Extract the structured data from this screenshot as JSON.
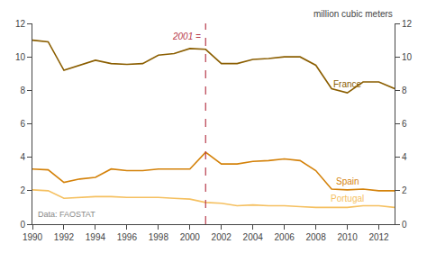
{
  "chart_data": {
    "type": "line",
    "x": [
      1990,
      1991,
      1992,
      1993,
      1994,
      1995,
      1996,
      1997,
      1998,
      1999,
      2000,
      2001,
      2002,
      2003,
      2004,
      2005,
      2006,
      2007,
      2008,
      2009,
      2010,
      2011,
      2012,
      2013
    ],
    "series": [
      {
        "name": "France",
        "color": "#8B5E00",
        "values": [
          11.0,
          10.9,
          9.2,
          9.5,
          9.8,
          9.6,
          9.55,
          9.6,
          10.1,
          10.2,
          10.5,
          10.45,
          9.6,
          9.6,
          9.85,
          9.9,
          10.0,
          10.0,
          9.5,
          8.1,
          7.85,
          8.5,
          8.5,
          8.1
        ]
      },
      {
        "name": "Spain",
        "color": "#D4820A",
        "values": [
          3.3,
          3.25,
          2.5,
          2.7,
          2.8,
          3.3,
          3.2,
          3.2,
          3.3,
          3.3,
          3.3,
          4.3,
          3.6,
          3.6,
          3.75,
          3.8,
          3.9,
          3.8,
          3.2,
          2.1,
          2.05,
          2.1,
          2.0,
          2.0
        ]
      },
      {
        "name": "Portugal",
        "color": "#F5C060",
        "values": [
          2.05,
          2.0,
          1.55,
          1.6,
          1.65,
          1.65,
          1.6,
          1.6,
          1.6,
          1.55,
          1.5,
          1.3,
          1.25,
          1.1,
          1.15,
          1.1,
          1.1,
          1.05,
          1.0,
          1.0,
          1.0,
          1.1,
          1.1,
          1.0
        ]
      }
    ],
    "xlim": [
      1990,
      2013
    ],
    "xticks": [
      1990,
      1992,
      1994,
      1996,
      1998,
      2000,
      2002,
      2004,
      2006,
      2008,
      2010,
      2012
    ],
    "ylim": [
      0,
      12
    ],
    "yticks": [
      0,
      2,
      4,
      6,
      8,
      10,
      12
    ],
    "y2lim": [
      0,
      12
    ],
    "y2ticks": [
      0,
      2,
      4,
      6,
      8,
      10,
      12
    ],
    "ylabel": "million cubic meters",
    "annotations": [
      {
        "text": "2001 =",
        "x": 2001,
        "color": "#B83A4B"
      },
      {
        "text": "Data: FAOSTAT"
      }
    ],
    "grid": false
  }
}
